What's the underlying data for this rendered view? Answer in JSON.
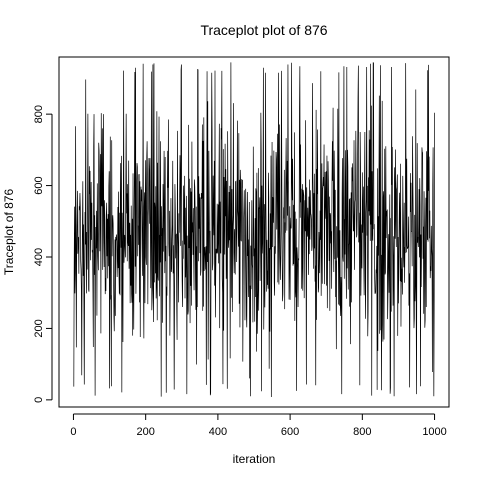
{
  "chart_data": {
    "type": "line",
    "title": "Traceplot plot of 876",
    "xlabel": "iteration",
    "ylabel": "Traceplot of 876",
    "xlim": [
      -40,
      1040
    ],
    "ylim": [
      -20,
      960
    ],
    "xticks": [
      0,
      200,
      400,
      600,
      800,
      1000
    ],
    "yticks": [
      0,
      200,
      400,
      600,
      800
    ],
    "x_range": [
      1,
      1000
    ],
    "series": [
      {
        "y_min": 5,
        "y_max": 945,
        "mean": 480,
        "n": 1000,
        "values": []
      }
    ],
    "grid": false,
    "line_color": "#000000"
  }
}
